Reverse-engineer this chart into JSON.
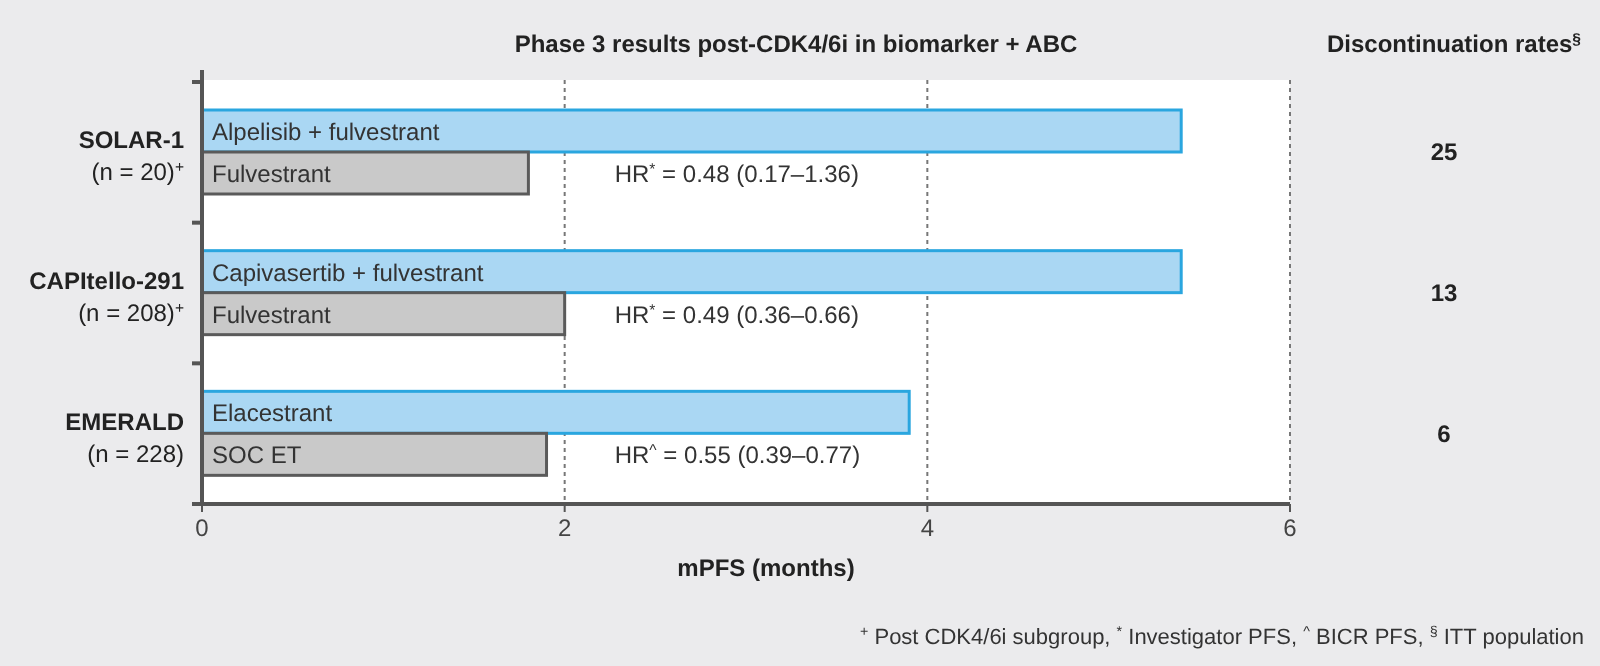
{
  "chart_data": [
    {
      "type": "bar",
      "orientation": "horizontal",
      "title": "Phase 3 results post-CDK4/6i in biomarker + ABC",
      "xlabel": "mPFS (months)",
      "categories": [
        "SOLAR-1\n(n = 20)$^{+}$",
        "CAPItello-291\n(n = 208)$^{+}$",
        "EMERALD\n(n = 228)"
      ],
      "series": [
        {
          "color": "#aad7f3",
          "values": [
            5.4,
            5.4,
            3.9
          ]
        },
        {
          "color": "#c9c9c9",
          "values": [
            1.8,
            2.0,
            1.9
          ]
        }
      ],
      "xlim": [
        0,
        6
      ],
      "xticks": [
        0,
        2,
        4,
        6
      ],
      "grid": "x",
      "annotations": [
        "Alpelisib + fulvestrant",
        "Fulvestrant",
        "HR$^{*}$ = 0.48 (0.17–1.36)",
        "Capivasertib + fulvestrant",
        "Fulvestrant",
        "HR$^{*}$ = 0.49 (0.36–0.66)",
        "Elacestrant",
        "SOC ET",
        "HR$^{^}$ = 0.55 (0.39–0.77)",
        "$^{+}$ Post CDK4/6i subgroup, $^{*}$ Investigator PFS, $^{^}$ BICR PFS, $^{§}$ ITT population"
      ]
    },
    {
      "type": "other",
      "title": "Discontinuation rates$^{§}$",
      "annotations": [
        "25",
        "13",
        "6"
      ]
    }
  ]
}
